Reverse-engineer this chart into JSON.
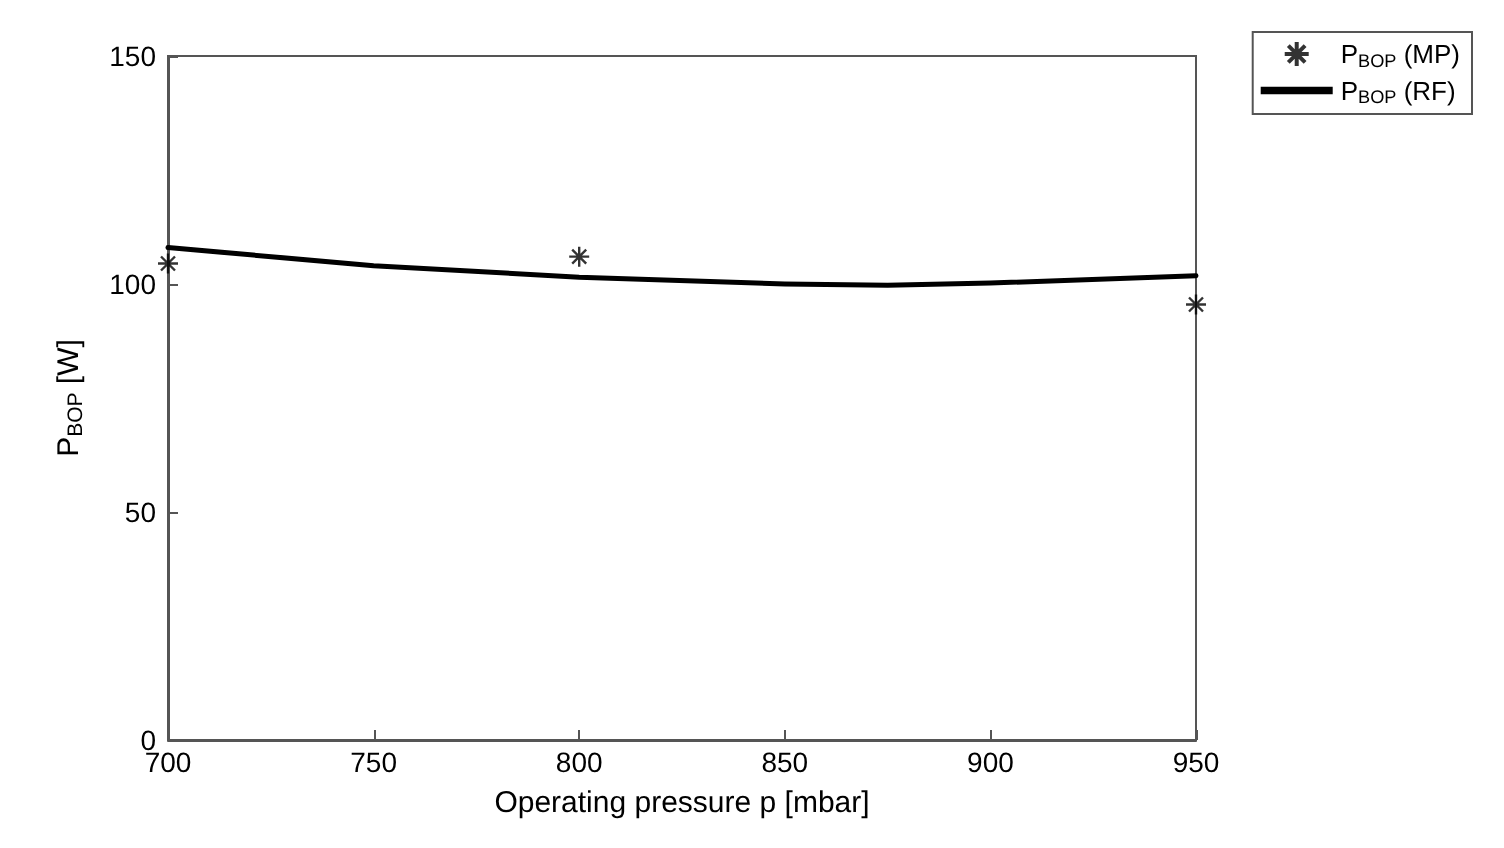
{
  "chart_data": {
    "type": "scatter",
    "xlabel": "Operating pressure p [mbar]",
    "ylabel": "P$_{BOP}$ [W]",
    "xlim": [
      700,
      950
    ],
    "xticks": [
      700,
      750,
      800,
      850,
      900,
      950
    ],
    "ylim": [
      0,
      150
    ],
    "yticks": [
      0,
      50,
      100,
      150
    ],
    "grid": false,
    "legend": "top right",
    "marker": "cross",
    "series": [
      {
        "name": "P$_{BOP}$ (MP)",
        "color": "#000000",
        "x": [
          700,
          800,
          950
        ],
        "values": [
          104.5,
          106,
          95.5
        ]
      },
      {
        "name": "P$_{BOP}$ (RF)",
        "type": "line",
        "color": "#000000",
        "line_style": "solid",
        "marker": "none",
        "x": [
          700,
          750,
          800,
          850,
          875,
          900,
          950
        ],
        "values": [
          108,
          104,
          101.5,
          100,
          99.7,
          100.2,
          101.8
        ]
      }
    ]
  }
}
